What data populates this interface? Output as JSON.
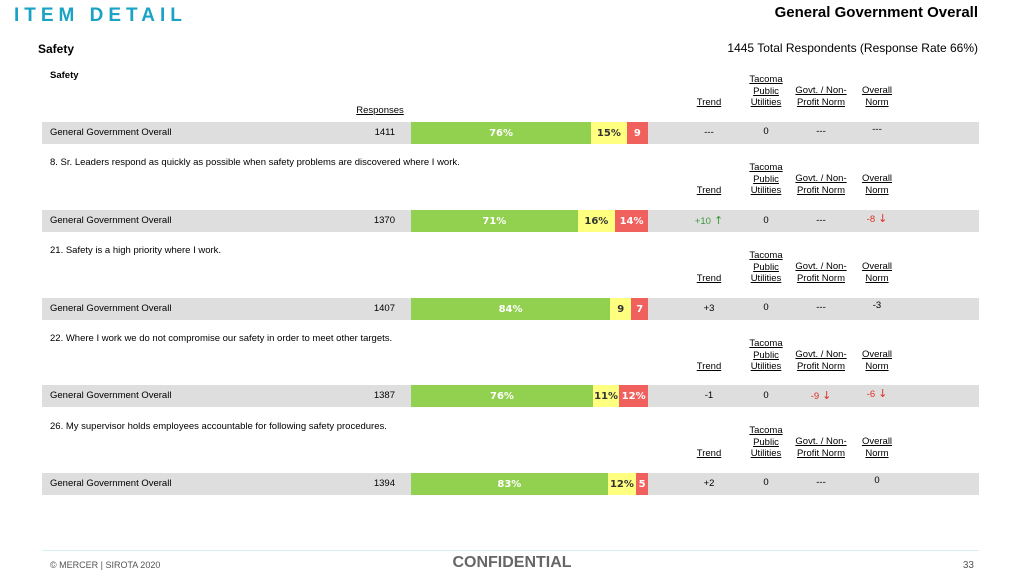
{
  "header": {
    "slide_title": "ITEM DETAIL",
    "report_title": "General Government Overall",
    "section": "Safety",
    "respondents": "1445 Total Respondents (Response Rate  66%)"
  },
  "columns": {
    "responses": "Responses",
    "trend": "Trend",
    "tpu_1": "Tacoma",
    "tpu_2": "Public",
    "tpu_3": "Utilities",
    "govt_1": "Govt. / Non-",
    "govt_2": "Profit Norm",
    "norm_1": "Overall",
    "norm_2": "Norm"
  },
  "colors": {
    "favorable": "#92d050",
    "neutral": "#ffff80",
    "unfavorable": "#f0605d",
    "title_accent": "#1aa3c5"
  },
  "blocks": [
    {
      "heading": "Safety",
      "row": {
        "label": "General Government Overall",
        "n": "1411",
        "fav": 76,
        "neu": 15,
        "unf": 9,
        "fav_label": "76%",
        "neu_label": "15%",
        "unf_label": "9",
        "trend": "---",
        "tpu": "0",
        "govt": "---",
        "norm": "---"
      }
    },
    {
      "heading": "8. Sr. Leaders respond as quickly as possible when safety problems are discovered where I work.",
      "row": {
        "label": "General Government Overall",
        "n": "1370",
        "fav": 71,
        "neu": 16,
        "unf": 14,
        "fav_label": "71%",
        "neu_label": "16%",
        "unf_label": "14%",
        "trend": "+10",
        "tpu": "0",
        "govt": "---",
        "norm": "-8"
      }
    },
    {
      "heading": "21. Safety is a high priority where I work.",
      "row": {
        "label": "General Government Overall",
        "n": "1407",
        "fav": 84,
        "neu": 9,
        "unf": 7,
        "fav_label": "84%",
        "neu_label": "9",
        "unf_label": "7",
        "trend": "+3",
        "tpu": "0",
        "govt": "---",
        "norm": "-3"
      }
    },
    {
      "heading": "22. Where I work we do not compromise our safety in order to meet other targets.",
      "row": {
        "label": "General Government Overall",
        "n": "1387",
        "fav": 76,
        "neu": 11,
        "unf": 12,
        "fav_label": "76%",
        "neu_label": "11%",
        "unf_label": "12%",
        "trend": "-1",
        "tpu": "0",
        "govt": "-9",
        "norm": "-6"
      }
    },
    {
      "heading": "26. My supervisor holds employees accountable for following safety procedures.",
      "row": {
        "label": "General Government Overall",
        "n": "1394",
        "fav": 83,
        "neu": 12,
        "unf": 5,
        "fav_label": "83%",
        "neu_label": "12%",
        "unf_label": "5",
        "trend": "+2",
        "tpu": "0",
        "govt": "---",
        "norm": "0"
      }
    }
  ],
  "footer": {
    "copyright": "© MERCER | SIROTA 2020",
    "confidential": "CONFIDENTIAL",
    "page": "33"
  }
}
